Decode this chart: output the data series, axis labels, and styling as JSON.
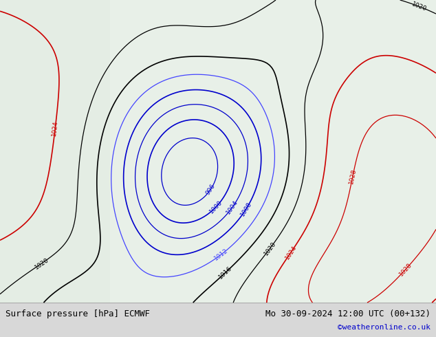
{
  "title_left": "Surface pressure [hPa] ECMWF",
  "title_right": "Mo 30-09-2024 12:00 UTC (00+132)",
  "copyright": "©weatheronline.co.uk",
  "bg_color": "#e8f0e8",
  "text_color_black": "#000000",
  "text_color_blue": "#0000cc",
  "text_color_red": "#cc0000",
  "bottom_bar_color": "#d8d8d8",
  "figsize": [
    6.34,
    4.9
  ],
  "dpi": 100
}
